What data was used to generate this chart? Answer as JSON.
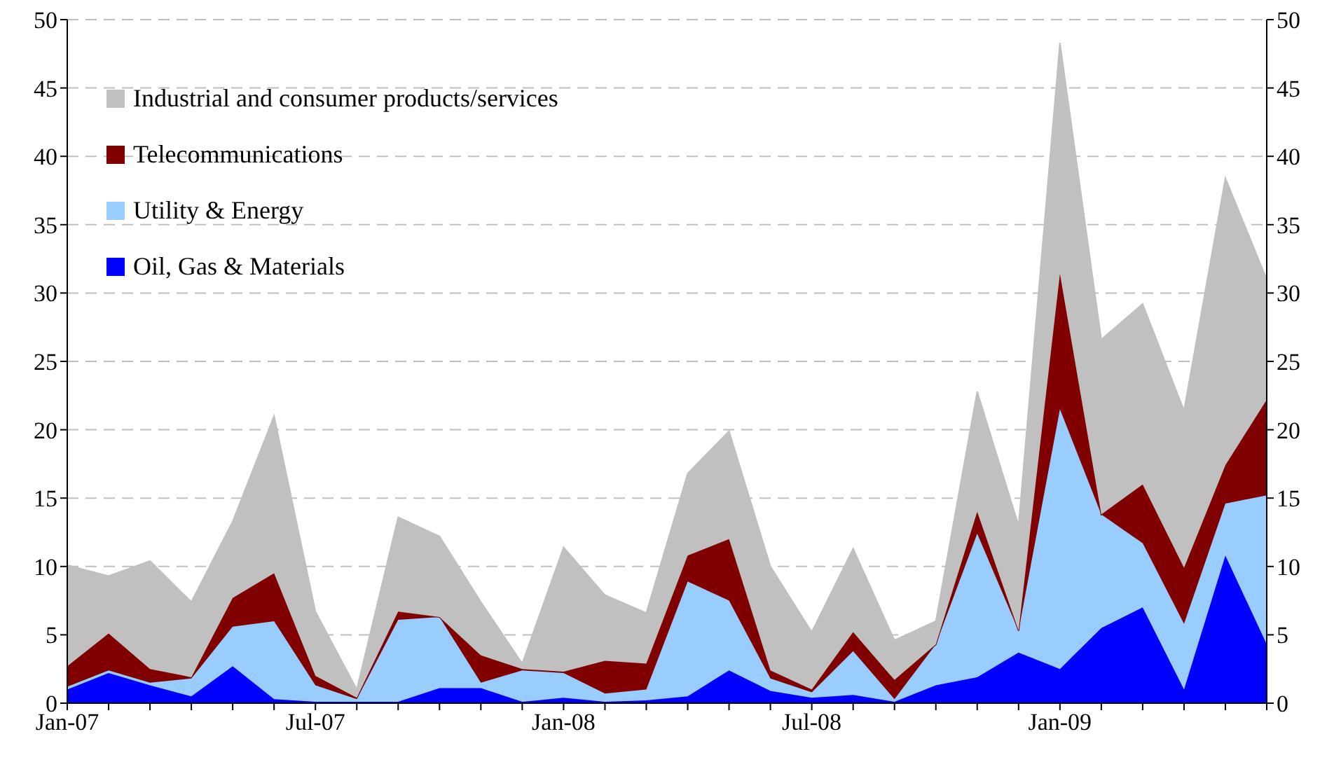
{
  "chart_data": {
    "type": "area",
    "stacked": true,
    "categories": [
      "Jan-07",
      null,
      null,
      null,
      null,
      null,
      "Jul-07",
      null,
      null,
      null,
      null,
      null,
      "Jan-08",
      null,
      null,
      null,
      null,
      null,
      "Jul-08",
      null,
      null,
      null,
      null,
      null,
      "Jan-09",
      null,
      null,
      null,
      null,
      null
    ],
    "series": [
      {
        "name": "Oil, Gas & Materials",
        "color": "#0000ff",
        "values": [
          1.0,
          2.2,
          1.3,
          0.5,
          2.7,
          0.3,
          0.1,
          0.1,
          0.1,
          1.1,
          1.1,
          0.1,
          0.4,
          0.1,
          0.2,
          0.5,
          2.4,
          0.9,
          0.4,
          0.6,
          0.1,
          1.3,
          1.9,
          3.7,
          2.5,
          5.5,
          7.0,
          1.0,
          10.8,
          4.3
        ]
      },
      {
        "name": "Utility & Energy",
        "color": "#99ccff",
        "values": [
          0.2,
          0.2,
          0.2,
          1.3,
          2.9,
          5.7,
          1.2,
          0.2,
          6.0,
          5.2,
          0.4,
          2.3,
          1.8,
          0.6,
          0.8,
          8.4,
          5.1,
          0.9,
          0.4,
          3.2,
          0.2,
          3.0,
          10.5,
          1.6,
          19.0,
          8.3,
          4.7,
          4.8,
          3.8,
          10.9
        ]
      },
      {
        "name": "Telecommunications",
        "color": "#800000",
        "values": [
          1.5,
          2.7,
          1.0,
          0.1,
          2.1,
          3.5,
          0.7,
          0.1,
          0.6,
          0,
          2.0,
          0.1,
          0.1,
          2.4,
          1.9,
          1.9,
          4.5,
          0.6,
          0.2,
          1.4,
          1.4,
          0,
          1.6,
          0,
          9.9,
          0,
          4.3,
          4.1,
          2.8,
          7.0
        ]
      },
      {
        "name": "Industrial and consumer products/services",
        "color": "#c0c0c0",
        "values": [
          7.4,
          4.2,
          7.9,
          5.5,
          5.6,
          11.5,
          4.7,
          0.6,
          6.9,
          5.9,
          3.9,
          0.4,
          9.1,
          4.8,
          3.7,
          6.0,
          7.9,
          7.6,
          4.2,
          6.1,
          2.9,
          1.7,
          8.8,
          7.7,
          16.9,
          12.8,
          13.2,
          11.5,
          21.0,
          8.8
        ]
      }
    ],
    "ylim": [
      0,
      50
    ],
    "yticks": [
      0,
      5,
      10,
      15,
      20,
      25,
      30,
      35,
      40,
      45,
      50
    ],
    "y2lim": [
      0,
      50
    ],
    "y2ticks": [
      0,
      5,
      10,
      15,
      20,
      25,
      30,
      35,
      40,
      45,
      50
    ],
    "grid": "y",
    "legend": "top left"
  }
}
